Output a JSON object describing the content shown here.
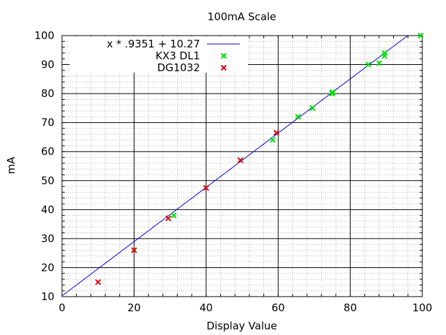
{
  "chart_data": {
    "type": "scatter",
    "title": "100mA Scale",
    "xlabel": "Display Value",
    "ylabel": "mA",
    "xlim": [
      0,
      100
    ],
    "ylim": [
      10,
      100
    ],
    "xticks": [
      0,
      20,
      40,
      60,
      80,
      100
    ],
    "yticks": [
      10,
      20,
      30,
      40,
      50,
      60,
      70,
      80,
      90,
      100
    ],
    "x_minor_step": 4,
    "y_minor_step": 2,
    "grid": true,
    "legend_position": "top-left",
    "fit_line": {
      "label": "x * .9351 + 10.27",
      "slope": 0.9351,
      "intercept": 10.27,
      "color": "#0000cc"
    },
    "series": [
      {
        "name": "KX3 DL1",
        "color": "#00dd00",
        "marker": "x",
        "points": [
          [
            31,
            38
          ],
          [
            58.5,
            64
          ],
          [
            65.5,
            72
          ],
          [
            69.5,
            75
          ],
          [
            75,
            80.5
          ],
          [
            75,
            80
          ],
          [
            85,
            90
          ],
          [
            88,
            90.5
          ],
          [
            89.5,
            93
          ],
          [
            89.5,
            94
          ],
          [
            99.5,
            100
          ]
        ]
      },
      {
        "name": "DG1032",
        "color": "#dd0000",
        "marker": "x",
        "points": [
          [
            10,
            15
          ],
          [
            20,
            26
          ],
          [
            29.5,
            37
          ],
          [
            40,
            47.5
          ],
          [
            49.5,
            57
          ],
          [
            59.5,
            66.5
          ]
        ]
      }
    ]
  }
}
